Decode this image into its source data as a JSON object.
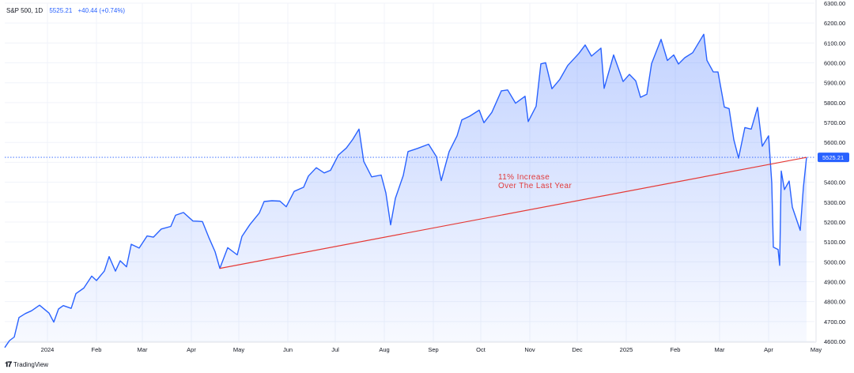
{
  "legend": {
    "symbol": "S&P 500, 1D",
    "price": "5525.21",
    "change": "+40.44 (+0.74%)"
  },
  "brand": {
    "name": "TradingView"
  },
  "annotation": {
    "line1": "11% Increase",
    "line2": "Over The Last Year"
  },
  "colors": {
    "line": "#2962ff",
    "fill": "#2962ff",
    "trend": "#e53935",
    "grid": "#f0f3fa",
    "axis_text": "#131722"
  },
  "chart_data": {
    "type": "area",
    "title": "",
    "xlabel": "",
    "ylabel": "",
    "ylim": [
      4600,
      6300
    ],
    "xlim": [
      "2023-12-05",
      "2025-04-30"
    ],
    "grid": true,
    "y_ticks": [
      4600,
      4700,
      4800,
      4900,
      5000,
      5100,
      5200,
      5300,
      5400,
      5500,
      5600,
      5700,
      5800,
      5900,
      6000,
      6100,
      6200,
      6300
    ],
    "y_tick_labels": [
      "4600.00",
      "4700.00",
      "4800.00",
      "4900.00",
      "5000.00",
      "5100.00",
      "5200.00",
      "5300.00",
      "5400.00",
      "5500.00",
      "5600.00",
      "5700.00",
      "5800.00",
      "5900.00",
      "6000.00",
      "6100.00",
      "6200.00",
      "6300.00"
    ],
    "x_ticks": [
      {
        "date": "2024-01-01",
        "label": "2024"
      },
      {
        "date": "2024-02-01",
        "label": "Feb"
      },
      {
        "date": "2024-03-01",
        "label": "Mar"
      },
      {
        "date": "2024-04-01",
        "label": "Apr"
      },
      {
        "date": "2024-05-01",
        "label": "May"
      },
      {
        "date": "2024-06-01",
        "label": "Jun"
      },
      {
        "date": "2024-07-01",
        "label": "Jul"
      },
      {
        "date": "2024-08-01",
        "label": "Aug"
      },
      {
        "date": "2024-09-01",
        "label": "Sep"
      },
      {
        "date": "2024-10-01",
        "label": "Oct"
      },
      {
        "date": "2024-11-01",
        "label": "Nov"
      },
      {
        "date": "2024-12-01",
        "label": "Dec"
      },
      {
        "date": "2025-01-01",
        "label": "2025"
      },
      {
        "date": "2025-02-01",
        "label": "Feb"
      },
      {
        "date": "2025-03-01",
        "label": "Mar"
      },
      {
        "date": "2025-04-01",
        "label": "Apr"
      },
      {
        "date": "2025-05-01",
        "label": "May"
      }
    ],
    "series": [
      {
        "x": [
          "2023-12-05",
          "2023-12-08",
          "2023-12-11",
          "2023-12-14",
          "2023-12-18",
          "2023-12-22",
          "2023-12-27",
          "2024-01-02",
          "2024-01-05",
          "2024-01-08",
          "2024-01-11",
          "2024-01-16",
          "2024-01-19",
          "2024-01-24",
          "2024-01-29",
          "2024-02-01",
          "2024-02-06",
          "2024-02-09",
          "2024-02-13",
          "2024-02-16",
          "2024-02-20",
          "2024-02-23",
          "2024-02-28",
          "2024-03-04",
          "2024-03-08",
          "2024-03-13",
          "2024-03-19",
          "2024-03-22",
          "2024-03-27",
          "2024-04-02",
          "2024-04-05",
          "2024-04-08",
          "2024-04-12",
          "2024-04-16",
          "2024-04-19",
          "2024-04-24",
          "2024-04-30",
          "2024-05-03",
          "2024-05-08",
          "2024-05-14",
          "2024-05-17",
          "2024-05-22",
          "2024-05-27",
          "2024-05-31",
          "2024-06-05",
          "2024-06-11",
          "2024-06-14",
          "2024-06-19",
          "2024-06-24",
          "2024-06-28",
          "2024-07-03",
          "2024-07-08",
          "2024-07-12",
          "2024-07-16",
          "2024-07-19",
          "2024-07-24",
          "2024-07-30",
          "2024-08-02",
          "2024-08-05",
          "2024-08-08",
          "2024-08-13",
          "2024-08-16",
          "2024-08-22",
          "2024-08-29",
          "2024-09-03",
          "2024-09-06",
          "2024-09-11",
          "2024-09-16",
          "2024-09-19",
          "2024-09-24",
          "2024-09-30",
          "2024-10-03",
          "2024-10-08",
          "2024-10-14",
          "2024-10-18",
          "2024-10-23",
          "2024-10-29",
          "2024-10-31",
          "2024-11-05",
          "2024-11-08",
          "2024-11-11",
          "2024-11-15",
          "2024-11-20",
          "2024-11-25",
          "2024-12-02",
          "2024-12-06",
          "2024-12-10",
          "2024-12-16",
          "2024-12-18",
          "2024-12-24",
          "2024-12-30",
          "2025-01-03",
          "2025-01-07",
          "2025-01-10",
          "2025-01-14",
          "2025-01-17",
          "2025-01-23",
          "2025-01-27",
          "2025-01-31",
          "2025-02-03",
          "2025-02-07",
          "2025-02-12",
          "2025-02-19",
          "2025-02-21",
          "2025-02-25",
          "2025-02-28",
          "2025-03-04",
          "2025-03-07",
          "2025-03-10",
          "2025-03-13",
          "2025-03-17",
          "2025-03-21",
          "2025-03-25",
          "2025-03-28",
          "2025-04-01",
          "2025-04-03",
          "2025-04-04",
          "2025-04-07",
          "2025-04-08",
          "2025-04-09",
          "2025-04-11",
          "2025-04-14",
          "2025-04-16",
          "2025-04-21",
          "2025-04-23",
          "2025-04-25"
        ],
        "y": [
          4569,
          4604,
          4622,
          4720,
          4740,
          4754,
          4782,
          4742,
          4697,
          4763,
          4780,
          4766,
          4840,
          4868,
          4928,
          4906,
          4954,
          5026,
          4953,
          5005,
          4975,
          5088,
          5069,
          5130,
          5124,
          5165,
          5178,
          5234,
          5248,
          5205,
          5204,
          5202,
          5123,
          5051,
          4967,
          5071,
          5035,
          5128,
          5187,
          5246,
          5303,
          5307,
          5305,
          5277,
          5354,
          5375,
          5431,
          5473,
          5447,
          5460,
          5537,
          5572,
          5615,
          5667,
          5505,
          5427,
          5436,
          5346,
          5186,
          5319,
          5434,
          5554,
          5570,
          5591,
          5528,
          5408,
          5554,
          5633,
          5713,
          5732,
          5762,
          5699,
          5751,
          5859,
          5864,
          5797,
          5832,
          5705,
          5782,
          5995,
          6001,
          5870,
          5917,
          5987,
          6047,
          6090,
          6034,
          6074,
          5872,
          6040,
          5906,
          5942,
          5909,
          5827,
          5842,
          5996,
          6118,
          6012,
          6040,
          5994,
          6026,
          6051,
          6144,
          6013,
          5955,
          5954,
          5778,
          5770,
          5614,
          5521,
          5675,
          5667,
          5776,
          5581,
          5633,
          5396,
          5074,
          5062,
          4982,
          5456,
          5363,
          5406,
          5275,
          5158,
          5375,
          5525
        ]
      }
    ],
    "trendline": {
      "start": {
        "x": "2024-04-19",
        "y": 4967
      },
      "end": {
        "x": "2025-04-25",
        "y": 5525
      }
    },
    "last_value": 5525.21,
    "last_value_label": "5525.21"
  }
}
